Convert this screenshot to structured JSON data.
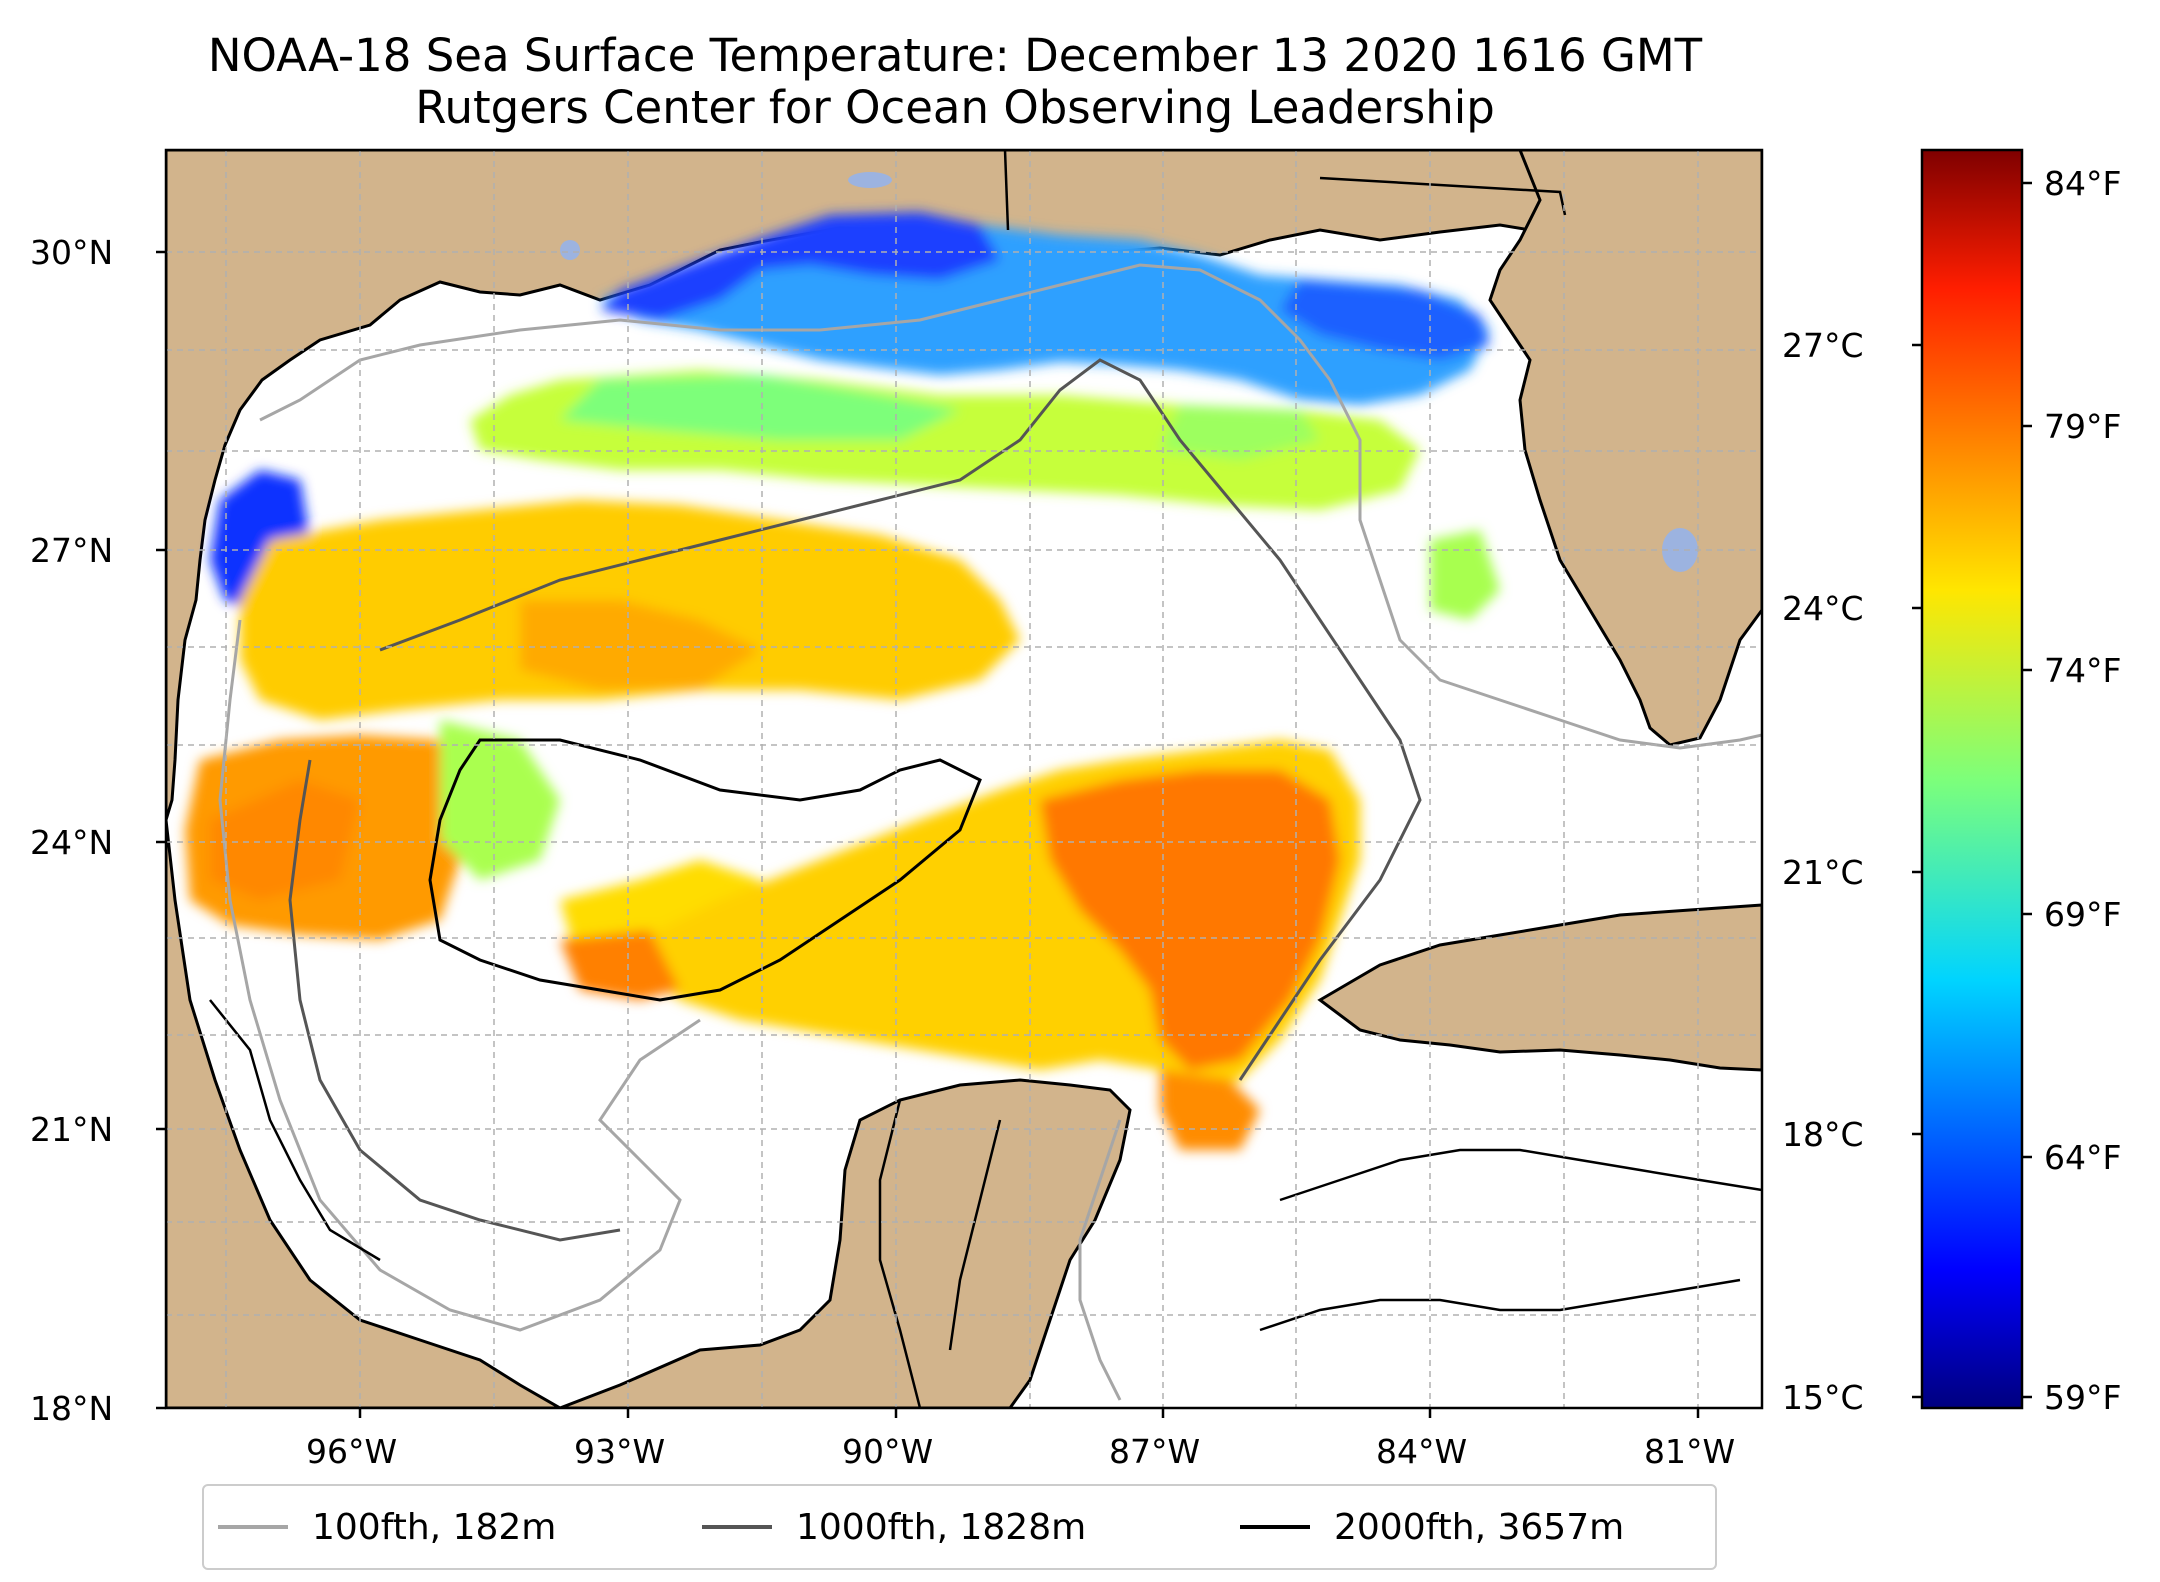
{
  "title": "NOAA-18 Sea Surface Temperature: December 13 2020 1616 GMT",
  "subtitle": "Rutgers Center for Ocean Observing Leadership",
  "axes": {
    "lat_ticks": [
      "30°N",
      "27°N",
      "24°N",
      "21°N",
      "18°N"
    ],
    "lon_ticks": [
      "96°W",
      "93°W",
      "90°W",
      "87°W",
      "84°W",
      "81°W"
    ]
  },
  "colorbar": {
    "celsius_ticks": [
      "27°C",
      "24°C",
      "21°C",
      "18°C",
      "15°C"
    ],
    "fahrenheit_ticks": [
      "84°F",
      "79°F",
      "74°F",
      "69°F",
      "64°F",
      "59°F"
    ]
  },
  "legend": [
    {
      "label": "100fth, 182m",
      "color": "#a6a6a6"
    },
    {
      "label": "1000fth, 1828m",
      "color": "#555555"
    },
    {
      "label": "2000fth, 3657m",
      "color": "#000000"
    }
  ],
  "colors": {
    "land": "#d2b48c",
    "lakes": "#9cb3e0",
    "ocean_no_data": "#ffffff"
  }
}
